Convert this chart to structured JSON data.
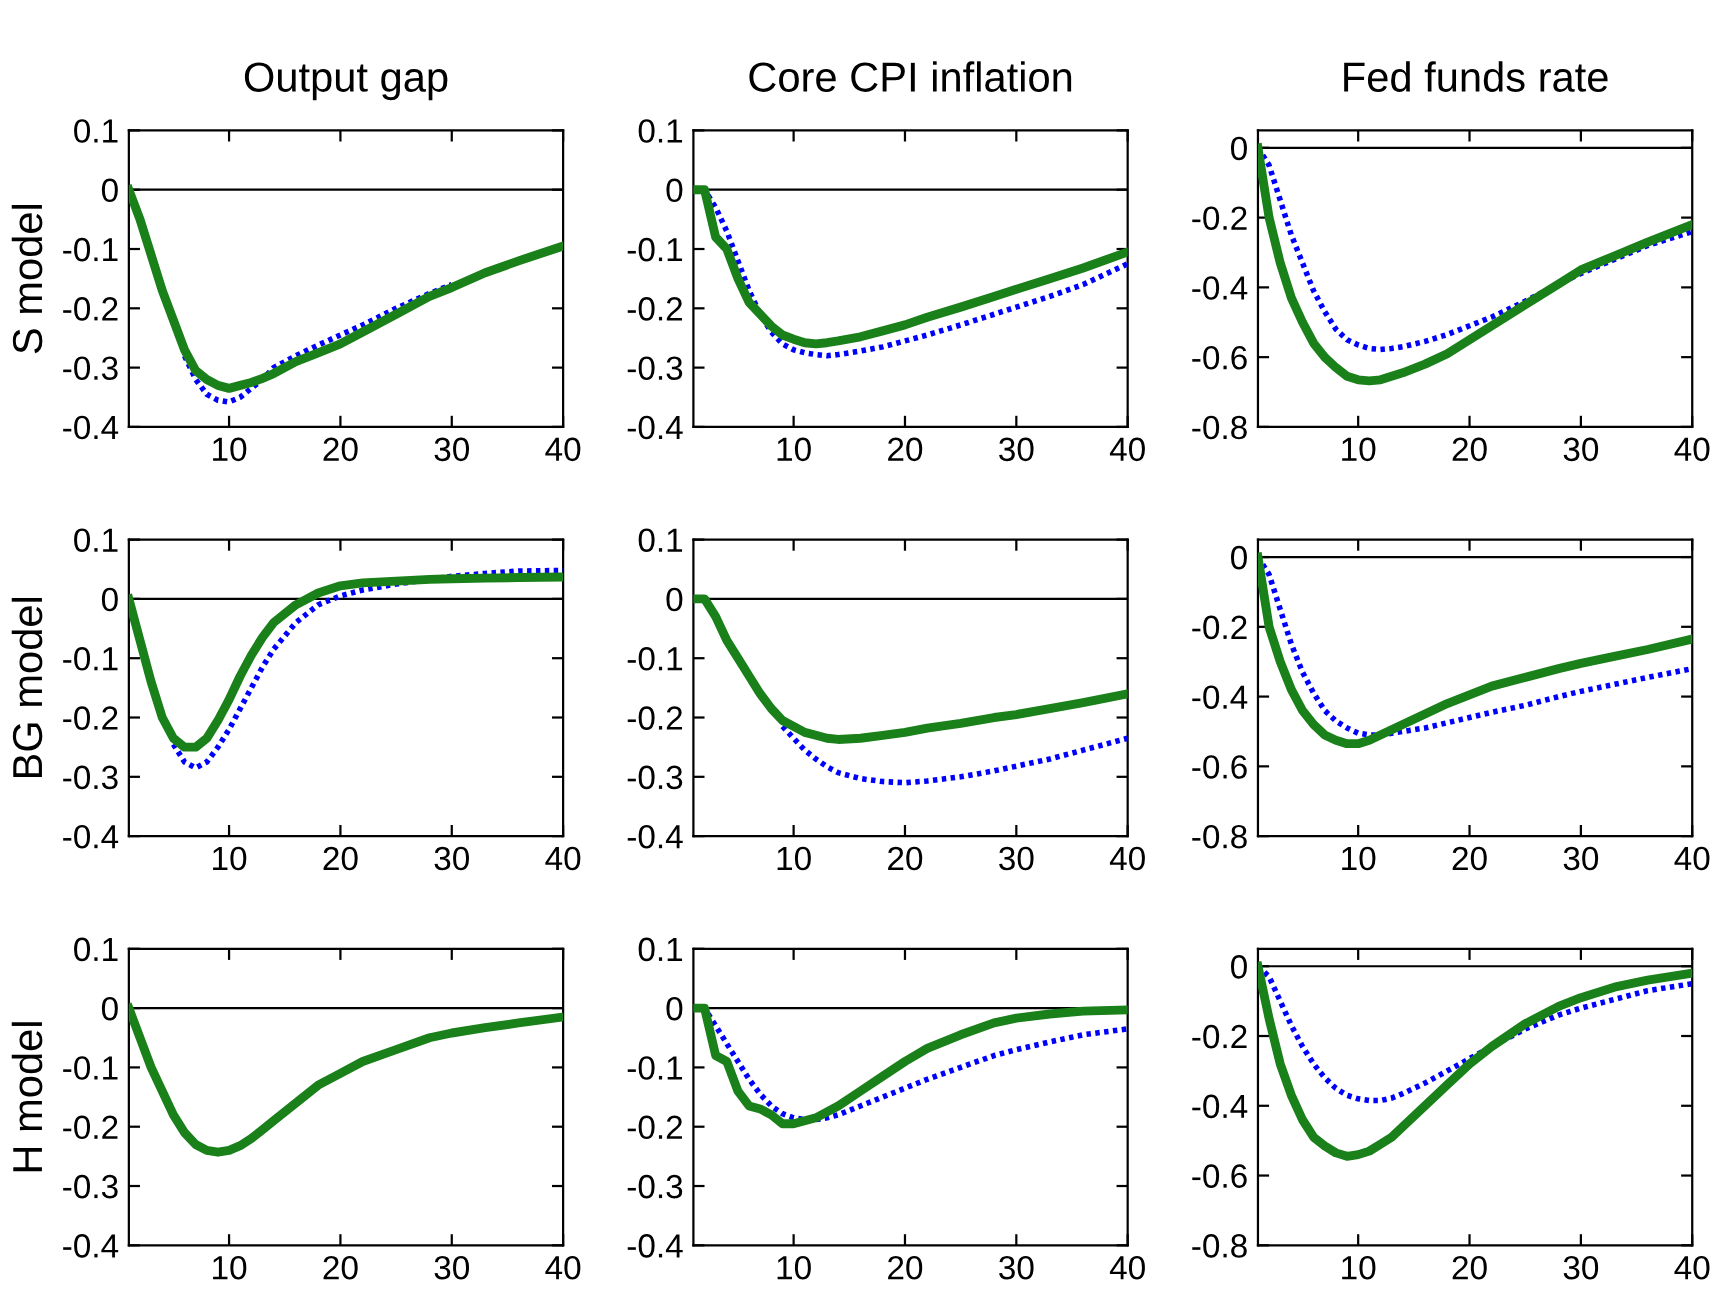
{
  "chart_data": [
    {
      "type": "line",
      "title": "Output gap",
      "ylabel": "S model",
      "x": [
        1,
        2,
        3,
        4,
        5,
        6,
        7,
        8,
        9,
        10,
        11,
        12,
        13,
        14,
        16,
        18,
        20,
        22,
        25,
        28,
        30,
        33,
        36,
        40
      ],
      "xlim": [
        1,
        40
      ],
      "xticks": [
        10,
        20,
        30,
        40
      ],
      "ylim": [
        -0.4,
        0.1
      ],
      "yticks": [
        -0.4,
        -0.3,
        -0.2,
        -0.1,
        0,
        0.1
      ],
      "grid": false,
      "legend": false,
      "ref_lines": [
        {
          "axis": "y",
          "value": 0,
          "color": "#000000"
        }
      ],
      "series": [
        {
          "color": "#0000ff",
          "line_style": "dotted",
          "values": [
            null,
            null,
            null,
            null,
            null,
            -0.28,
            -0.32,
            -0.345,
            -0.355,
            -0.358,
            -0.35,
            -0.335,
            -0.32,
            -0.3,
            -0.28,
            -0.262,
            -0.245,
            -0.228,
            -0.2,
            -0.175,
            -0.16,
            null,
            null,
            null
          ]
        },
        {
          "color": "#1a801a",
          "line_style": "solid",
          "values": [
            0,
            -0.05,
            -0.11,
            -0.17,
            -0.22,
            -0.27,
            -0.305,
            -0.32,
            -0.33,
            -0.335,
            -0.33,
            -0.325,
            -0.318,
            -0.31,
            -0.29,
            -0.275,
            -0.26,
            -0.24,
            -0.21,
            -0.18,
            -0.165,
            -0.14,
            -0.12,
            -0.095
          ]
        }
      ]
    },
    {
      "type": "line",
      "title": "Core CPI inflation",
      "x": [
        1,
        2,
        3,
        4,
        5,
        6,
        7,
        8,
        9,
        10,
        11,
        12,
        13,
        14,
        16,
        18,
        20,
        22,
        25,
        28,
        30,
        33,
        36,
        40
      ],
      "xlim": [
        1,
        40
      ],
      "xticks": [
        10,
        20,
        30,
        40
      ],
      "ylim": [
        -0.4,
        0.1
      ],
      "yticks": [
        -0.4,
        -0.3,
        -0.2,
        -0.1,
        0,
        0.1
      ],
      "grid": false,
      "legend": false,
      "ref_lines": [
        {
          "axis": "y",
          "value": 0,
          "color": "#000000"
        }
      ],
      "series": [
        {
          "color": "#0000ff",
          "line_style": "dotted",
          "values": [
            0,
            0,
            -0.03,
            -0.07,
            -0.12,
            -0.17,
            -0.21,
            -0.24,
            -0.26,
            -0.27,
            -0.275,
            -0.278,
            -0.28,
            -0.278,
            -0.272,
            -0.265,
            -0.255,
            -0.245,
            -0.228,
            -0.21,
            -0.198,
            -0.18,
            -0.16,
            -0.125
          ]
        },
        {
          "color": "#1a801a",
          "line_style": "solid",
          "values": [
            0,
            0,
            -0.08,
            -0.1,
            -0.15,
            -0.19,
            -0.21,
            -0.23,
            -0.245,
            -0.252,
            -0.258,
            -0.26,
            -0.258,
            -0.255,
            -0.248,
            -0.238,
            -0.228,
            -0.215,
            -0.198,
            -0.18,
            -0.168,
            -0.15,
            -0.132,
            -0.105
          ]
        }
      ]
    },
    {
      "type": "line",
      "title": "Fed funds rate",
      "x": [
        1,
        2,
        3,
        4,
        5,
        6,
        7,
        8,
        9,
        10,
        11,
        12,
        13,
        14,
        16,
        18,
        20,
        22,
        25,
        28,
        30,
        33,
        36,
        40
      ],
      "xlim": [
        1,
        40
      ],
      "xticks": [
        10,
        20,
        30,
        40
      ],
      "ylim": [
        -0.8,
        0.05
      ],
      "yticks": [
        -0.8,
        -0.6,
        -0.4,
        -0.2,
        0
      ],
      "grid": false,
      "legend": false,
      "ref_lines": [
        {
          "axis": "y",
          "value": 0,
          "color": "#000000"
        }
      ],
      "series": [
        {
          "color": "#0000ff",
          "line_style": "dotted",
          "values": [
            0,
            -0.05,
            -0.15,
            -0.25,
            -0.33,
            -0.41,
            -0.47,
            -0.52,
            -0.55,
            -0.565,
            -0.575,
            -0.578,
            -0.575,
            -0.57,
            -0.555,
            -0.535,
            -0.51,
            -0.485,
            -0.44,
            -0.39,
            -0.36,
            -0.32,
            -0.28,
            -0.24
          ]
        },
        {
          "color": "#1a801a",
          "line_style": "solid",
          "values": [
            0,
            -0.2,
            -0.33,
            -0.43,
            -0.5,
            -0.56,
            -0.6,
            -0.63,
            -0.655,
            -0.665,
            -0.668,
            -0.665,
            -0.655,
            -0.645,
            -0.62,
            -0.59,
            -0.55,
            -0.51,
            -0.45,
            -0.39,
            -0.35,
            -0.31,
            -0.27,
            -0.22
          ]
        }
      ]
    },
    {
      "type": "line",
      "ylabel": "BG model",
      "x": [
        1,
        2,
        3,
        4,
        5,
        6,
        7,
        8,
        9,
        10,
        11,
        12,
        13,
        14,
        16,
        18,
        20,
        22,
        25,
        28,
        30,
        33,
        36,
        40
      ],
      "xlim": [
        1,
        40
      ],
      "xticks": [
        10,
        20,
        30,
        40
      ],
      "ylim": [
        -0.4,
        0.1
      ],
      "yticks": [
        -0.4,
        -0.3,
        -0.2,
        -0.1,
        0,
        0.1
      ],
      "grid": false,
      "legend": false,
      "ref_lines": [
        {
          "axis": "y",
          "value": 0,
          "color": "#000000"
        }
      ],
      "series": [
        {
          "color": "#0000ff",
          "line_style": "dotted",
          "values": [
            null,
            null,
            null,
            null,
            -0.245,
            -0.275,
            -0.285,
            -0.275,
            -0.25,
            -0.22,
            -0.185,
            -0.15,
            -0.115,
            -0.085,
            -0.04,
            -0.01,
            0.005,
            0.015,
            0.025,
            0.033,
            0.038,
            0.043,
            0.047,
            0.048
          ]
        },
        {
          "color": "#1a801a",
          "line_style": "solid",
          "values": [
            0,
            -0.07,
            -0.14,
            -0.2,
            -0.235,
            -0.25,
            -0.25,
            -0.235,
            -0.205,
            -0.17,
            -0.13,
            -0.095,
            -0.065,
            -0.04,
            -0.01,
            0.01,
            0.022,
            0.027,
            0.03,
            0.033,
            0.034,
            0.035,
            0.036,
            0.037
          ]
        }
      ]
    },
    {
      "type": "line",
      "x": [
        1,
        2,
        3,
        4,
        5,
        6,
        7,
        8,
        9,
        10,
        11,
        12,
        13,
        14,
        16,
        18,
        20,
        22,
        25,
        28,
        30,
        33,
        36,
        40
      ],
      "xlim": [
        1,
        40
      ],
      "xticks": [
        10,
        20,
        30,
        40
      ],
      "ylim": [
        -0.4,
        0.1
      ],
      "yticks": [
        -0.4,
        -0.3,
        -0.2,
        -0.1,
        0,
        0.1
      ],
      "grid": false,
      "legend": false,
      "ref_lines": [
        {
          "axis": "y",
          "value": 0,
          "color": "#000000"
        }
      ],
      "series": [
        {
          "color": "#0000ff",
          "line_style": "dotted",
          "values": [
            null,
            null,
            null,
            null,
            null,
            null,
            null,
            null,
            -0.215,
            -0.235,
            -0.255,
            -0.27,
            -0.283,
            -0.293,
            -0.303,
            -0.308,
            -0.31,
            -0.307,
            -0.3,
            -0.29,
            -0.282,
            -0.27,
            -0.255,
            -0.235
          ]
        },
        {
          "color": "#1a801a",
          "line_style": "solid",
          "values": [
            0,
            0,
            -0.03,
            -0.07,
            -0.1,
            -0.13,
            -0.16,
            -0.185,
            -0.205,
            -0.215,
            -0.225,
            -0.23,
            -0.235,
            -0.237,
            -0.235,
            -0.23,
            -0.225,
            -0.218,
            -0.21,
            -0.2,
            -0.195,
            -0.185,
            -0.175,
            -0.16
          ]
        }
      ]
    },
    {
      "type": "line",
      "x": [
        1,
        2,
        3,
        4,
        5,
        6,
        7,
        8,
        9,
        10,
        11,
        12,
        13,
        14,
        16,
        18,
        20,
        22,
        25,
        28,
        30,
        33,
        36,
        40
      ],
      "xlim": [
        1,
        40
      ],
      "xticks": [
        10,
        20,
        30,
        40
      ],
      "ylim": [
        -0.8,
        0.05
      ],
      "yticks": [
        -0.8,
        -0.6,
        -0.4,
        -0.2,
        0
      ],
      "grid": false,
      "legend": false,
      "ref_lines": [
        {
          "axis": "y",
          "value": 0,
          "color": "#000000"
        }
      ],
      "series": [
        {
          "color": "#0000ff",
          "line_style": "dotted",
          "values": [
            0,
            -0.05,
            -0.15,
            -0.25,
            -0.33,
            -0.39,
            -0.44,
            -0.47,
            -0.49,
            -0.505,
            -0.51,
            -0.51,
            -0.505,
            -0.5,
            -0.49,
            -0.475,
            -0.46,
            -0.445,
            -0.425,
            -0.4,
            -0.385,
            -0.365,
            -0.345,
            -0.32
          ]
        },
        {
          "color": "#1a801a",
          "line_style": "solid",
          "values": [
            0,
            -0.2,
            -0.3,
            -0.38,
            -0.44,
            -0.48,
            -0.51,
            -0.525,
            -0.535,
            -0.535,
            -0.525,
            -0.51,
            -0.495,
            -0.48,
            -0.45,
            -0.42,
            -0.395,
            -0.37,
            -0.345,
            -0.32,
            -0.305,
            -0.285,
            -0.265,
            -0.235
          ]
        }
      ]
    },
    {
      "type": "line",
      "ylabel": "H model",
      "x": [
        1,
        2,
        3,
        4,
        5,
        6,
        7,
        8,
        9,
        10,
        11,
        12,
        13,
        14,
        16,
        18,
        20,
        22,
        25,
        28,
        30,
        33,
        36,
        40
      ],
      "xlim": [
        1,
        40
      ],
      "xticks": [
        10,
        20,
        30,
        40
      ],
      "ylim": [
        -0.4,
        0.1
      ],
      "yticks": [
        -0.4,
        -0.3,
        -0.2,
        -0.1,
        0,
        0.1
      ],
      "grid": false,
      "legend": false,
      "ref_lines": [
        {
          "axis": "y",
          "value": 0,
          "color": "#000000"
        }
      ],
      "series": [
        {
          "color": "#1a801a",
          "line_style": "solid",
          "values": [
            0,
            -0.05,
            -0.1,
            -0.14,
            -0.18,
            -0.21,
            -0.23,
            -0.24,
            -0.243,
            -0.24,
            -0.232,
            -0.22,
            -0.205,
            -0.19,
            -0.16,
            -0.13,
            -0.11,
            -0.09,
            -0.07,
            -0.05,
            -0.042,
            -0.033,
            -0.025,
            -0.015
          ]
        }
      ]
    },
    {
      "type": "line",
      "x": [
        1,
        2,
        3,
        4,
        5,
        6,
        7,
        8,
        9,
        10,
        11,
        12,
        13,
        14,
        16,
        18,
        20,
        22,
        25,
        28,
        30,
        33,
        36,
        40
      ],
      "xlim": [
        1,
        40
      ],
      "xticks": [
        10,
        20,
        30,
        40
      ],
      "ylim": [
        -0.4,
        0.1
      ],
      "yticks": [
        -0.4,
        -0.3,
        -0.2,
        -0.1,
        0,
        0.1
      ],
      "grid": false,
      "legend": false,
      "ref_lines": [
        {
          "axis": "y",
          "value": 0,
          "color": "#000000"
        }
      ],
      "series": [
        {
          "color": "#0000ff",
          "line_style": "dotted",
          "values": [
            0,
            0,
            -0.03,
            -0.06,
            -0.09,
            -0.12,
            -0.145,
            -0.165,
            -0.178,
            -0.185,
            -0.188,
            -0.188,
            -0.185,
            -0.18,
            -0.165,
            -0.15,
            -0.135,
            -0.12,
            -0.1,
            -0.08,
            -0.07,
            -0.057,
            -0.045,
            -0.035
          ]
        },
        {
          "color": "#1a801a",
          "line_style": "solid",
          "values": [
            0,
            0,
            -0.08,
            -0.09,
            -0.14,
            -0.165,
            -0.17,
            -0.18,
            -0.195,
            -0.195,
            -0.19,
            -0.185,
            -0.175,
            -0.165,
            -0.14,
            -0.115,
            -0.09,
            -0.068,
            -0.045,
            -0.025,
            -0.017,
            -0.01,
            -0.005,
            -0.003
          ]
        }
      ]
    },
    {
      "type": "line",
      "x": [
        1,
        2,
        3,
        4,
        5,
        6,
        7,
        8,
        9,
        10,
        11,
        12,
        13,
        14,
        16,
        18,
        20,
        22,
        25,
        28,
        30,
        33,
        36,
        40
      ],
      "xlim": [
        1,
        40
      ],
      "xticks": [
        10,
        20,
        30,
        40
      ],
      "ylim": [
        -0.8,
        0.05
      ],
      "yticks": [
        -0.8,
        -0.6,
        -0.4,
        -0.2,
        0
      ],
      "grid": false,
      "legend": false,
      "ref_lines": [
        {
          "axis": "y",
          "value": 0,
          "color": "#000000"
        }
      ],
      "series": [
        {
          "color": "#0000ff",
          "line_style": "dotted",
          "values": [
            0,
            -0.03,
            -0.1,
            -0.17,
            -0.23,
            -0.28,
            -0.32,
            -0.35,
            -0.37,
            -0.38,
            -0.385,
            -0.385,
            -0.378,
            -0.365,
            -0.335,
            -0.3,
            -0.265,
            -0.23,
            -0.18,
            -0.14,
            -0.12,
            -0.095,
            -0.07,
            -0.05
          ]
        },
        {
          "color": "#1a801a",
          "line_style": "solid",
          "values": [
            0,
            -0.15,
            -0.28,
            -0.37,
            -0.44,
            -0.49,
            -0.515,
            -0.535,
            -0.545,
            -0.54,
            -0.53,
            -0.51,
            -0.49,
            -0.46,
            -0.4,
            -0.34,
            -0.28,
            -0.23,
            -0.165,
            -0.115,
            -0.09,
            -0.06,
            -0.04,
            -0.02
          ]
        }
      ]
    }
  ]
}
